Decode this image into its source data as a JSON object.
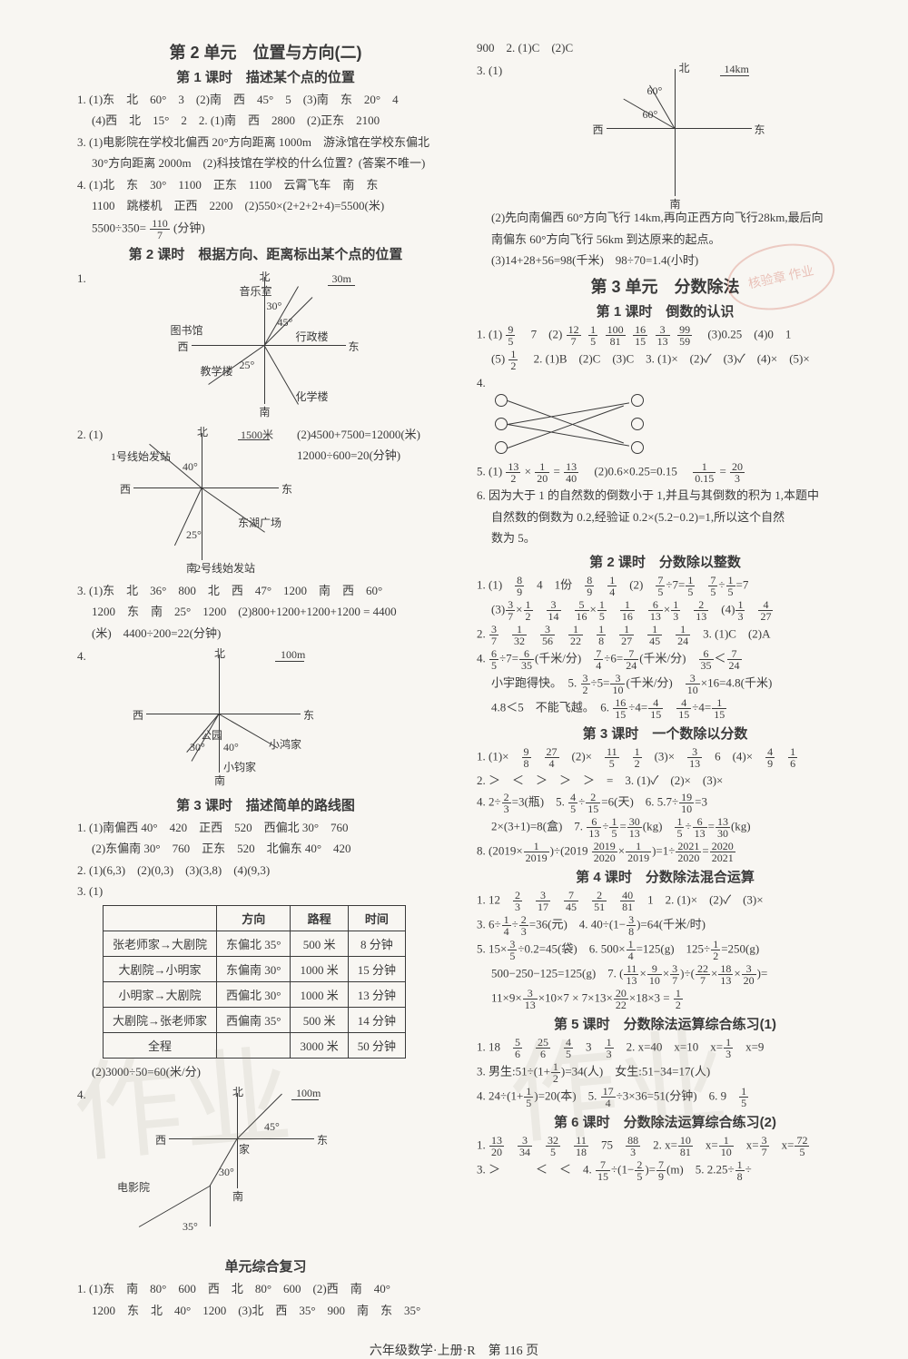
{
  "colors": {
    "text": "#3a3a3a",
    "bg": "#f8f6f2",
    "watermark": "rgba(150,140,120,0.12)",
    "stamp": "rgba(200,70,50,0.25)"
  },
  "left": {
    "unit2_title": "第 2 单元　位置与方向(二)",
    "l1_title": "第 1 课时　描述某个点的位置",
    "l1_q1": "1. (1)东　北　60°　3　(2)南　西　45°　5　(3)南　东　20°　4",
    "l1_q1b": "(4)西　北　15°　2　2. (1)南　西　2800　(2)正东　2100",
    "l1_q3": "3. (1)电影院在学校北偏西 20°方向距离 1000m　游泳馆在学校东偏北",
    "l1_q3b": "30°方向距离 2000m　(2)科技馆在学校的什么位置？(答案不唯一)",
    "l1_q4": "4. (1)北　东　30°　1100　正东　1100　云霄飞车　南　东",
    "l1_q4b": "1100　跳楼机　正西　2200　(2)550×(2+2+2+4)=5500(米)",
    "l1_q4c_pre": "5500÷350=",
    "l1_q4c_num": "110",
    "l1_q4c_den": "7",
    "l1_q4c_post": "(分钟)",
    "l2_title": "第 2 课时　根据方向、距离标出某个点的位置",
    "d1": {
      "q": "1.",
      "north": "北",
      "south": "南",
      "east": "东",
      "west": "西",
      "scale": "30m",
      "yinyue": "音乐室",
      "tushu": "图书馆",
      "xingzheng": "行政楼",
      "jiaoxue": "教学楼",
      "huaxue": "化学楼",
      "a30": "30°",
      "a45": "45°",
      "a25": "25°"
    },
    "d2": {
      "q": "2. (1)",
      "north": "北",
      "south": "南",
      "east": "东",
      "west": "西",
      "scale": "1500米",
      "s1a": "(2)4500+7500=12000(米)",
      "s1b": "12000÷600=20(分钟)",
      "line1": "1号线始发站",
      "a40": "40°",
      "donghu": "东湖广场",
      "a25": "25°",
      "line2": "2号线始发站"
    },
    "l2_q3": "3. (1)东　北　36°　800　北　西　47°　1200　南　西　60°",
    "l2_q3b": "1200　东　南　25°　1200　(2)800+1200+1200+1200 = 4400",
    "l2_q3c": "(米)　4400÷200=22(分钟)",
    "d3": {
      "q": "4.",
      "north": "北",
      "south": "南",
      "east": "东",
      "west": "西",
      "scale": "100m",
      "park": "公园",
      "hong": "小鸿家",
      "jun": "小钧家",
      "a30": "30°",
      "a40": "40°"
    },
    "l3_title": "第 3 课时　描述简单的路线图",
    "l3_q1": "1. (1)南偏西 40°　420　正西　520　西偏北 30°　760",
    "l3_q1b": "(2)东偏南 30°　760　正东　520　北偏东 40°　420",
    "l3_q2": "2. (1)(6,3)　(2)(0,3)　(3)(3,8)　(4)(9,3)",
    "l3_q3": "3. (1)",
    "table": {
      "headers": [
        "",
        "方向",
        "路程",
        "时间"
      ],
      "rows": [
        [
          "张老师家→大剧院",
          "东偏北 35°",
          "500 米",
          "8 分钟"
        ],
        [
          "大剧院→小明家",
          "东偏南 30°",
          "1000 米",
          "15 分钟"
        ],
        [
          "小明家→大剧院",
          "西偏北 30°",
          "1000 米",
          "13 分钟"
        ],
        [
          "大剧院→张老师家",
          "西偏南 35°",
          "500 米",
          "14 分钟"
        ],
        [
          "全程",
          "",
          "3000 米",
          "50 分钟"
        ]
      ]
    },
    "l3_q3b": "(2)3000÷50=60(米/分)",
    "d4": {
      "q": "4.",
      "north": "北",
      "south": "南",
      "east": "东",
      "west": "西",
      "scale": "100m",
      "jia": "家",
      "cinema": "电影院",
      "a45": "45°",
      "a30": "30°",
      "a35": "35°"
    },
    "review_title": "单元综合复习",
    "rev_q1": "1. (1)东　南　80°　600　西　北　80°　600　(2)西　南　40°",
    "rev_q1b": "1200　东　北　40°　1200　(3)北　西　35°　900　南　东　35°"
  },
  "right": {
    "top": "900　2. (1)C　(2)C",
    "q3": "3. (1)",
    "d5": {
      "north": "北",
      "south": "南",
      "east": "东",
      "west": "西",
      "scale": "14km",
      "a60a": "60°",
      "a60b": "60°"
    },
    "q3_2": "(2)先向南偏西 60°方向飞行 14km,再向正西方向飞行28km,最后向",
    "q3_2b": "南偏东 60°方向飞行 56km 到达原来的起点。",
    "q3_3": "(3)14+28+56=98(千米)　98÷70=1.4(小时)",
    "unit3_title": "第 3 单元　分数除法",
    "u3l1_title": "第 1 课时　倒数的认识",
    "u3l1_q1_pre": "1. (1)",
    "u3l1_q1_f1n": "9",
    "u3l1_q1_f1d": "5",
    "u3l1_q1_a": "　7　(2)",
    "u3l1_q1_f2n": "12",
    "u3l1_q1_f2d": "7",
    "u3l1_q1_f3n": "1",
    "u3l1_q1_f3d": "5",
    "u3l1_q1_f4n": "100",
    "u3l1_q1_f4d": "81",
    "u3l1_q1_f5n": "16",
    "u3l1_q1_f5d": "15",
    "u3l1_q1_f6n": "3",
    "u3l1_q1_f6d": "13",
    "u3l1_q1_f7n": "99",
    "u3l1_q1_f7d": "59",
    "u3l1_q1_b": "　(3)0.25　(4)0　1",
    "u3l1_q1c_pre": "(5)",
    "u3l1_q1_f8n": "1",
    "u3l1_q1_f8d": "2",
    "u3l1_q1c": "　2. (1)B　(2)C　(3)C　3. (1)×　(2)✓　(3)✓　(4)×　(5)×",
    "u3l1_q4": "4.",
    "u3l1_q5_pre": "5. (1)",
    "u3l1_q5_f1n": "13",
    "u3l1_q5_f1d": "2",
    "u3l1_q5_a": "×",
    "u3l1_q5_f2n": "1",
    "u3l1_q5_f2d": "20",
    "u3l1_q5_b": "=",
    "u3l1_q5_f3n": "13",
    "u3l1_q5_f3d": "40",
    "u3l1_q5_c": "　(2)0.6×0.25=0.15　",
    "u3l1_q5_f4n": "1",
    "u3l1_q5_f4d": "0.15",
    "u3l1_q5_d": "=",
    "u3l1_q5_f5n": "20",
    "u3l1_q5_f5d": "3",
    "u3l1_q6": "6. 因为大于 1 的自然数的倒数小于 1,并且与其倒数的积为 1,本题中",
    "u3l1_q6b": "自然数的倒数为 0.2,经验证 0.2×(5.2−0.2)=1,所以这个自然",
    "u3l1_q6c": "数为 5。",
    "u3l2_title": "第 2 课时　分数除以整数",
    "u3l2_l1": "1. (1)　8/9　4　1份　8/9　1/4　(2)　7/5÷7=1/5　7/5÷1/5=7",
    "u3l2_l2": "(3)3/7×1/2　3/14　5/16×1/5　1/16　6/13×1/3　2/13　(4)1/3　4/27",
    "u3l2_l3": "2. 3/7　1/32　3/56　1/22　1/8　1/27　1/45　1/24　3. (1)C　(2)A",
    "u3l2_l4": "4. 6/5÷7=6/35(千米/分)　7/4÷6=7/24(千米/分)　6/35＜7/24",
    "u3l2_l5": "小宇跑得快。　5. 3/2÷5=3/10(千米/分)　3/10×16=4.8(千米)",
    "u3l2_l6": "4.8＜5　不能飞越。　6. 16/15÷4=4/15　4/15÷4=1/15",
    "u3l3_title": "第 3 课时　一个数除以分数",
    "u3l3_l1": "1. (1)×　9/8　27/4　(2)×　11/5　1/2　(3)×　3/13　6　(4)×　4/9　1/6",
    "u3l3_l2": "2. ＞　＜　＞　＞　＞　=　3. (1)✓　(2)×　(3)×",
    "u3l3_l3": "4. 2÷2/3=3(瓶)　5. 4/5÷2/15=6(天)　6. 5.7÷19/10=3",
    "u3l3_l4": "2×(3+1)=8(盒)　7. 6/13÷1/5=30/13(kg)　1/5÷6/13=13/30(kg)",
    "u3l3_l5": "8. (2019×1/2019)÷(2019 2019/2020×1/2019)=1÷2021/2020=2020/2021",
    "u3l4_title": "第 4 课时　分数除法混合运算",
    "u3l4_l1": "1. 12　2/3　3/17　7/45　2/51　40/81　1　2. (1)×　(2)✓　(3)×",
    "u3l4_l2": "3. 6÷1/4÷2/3=36(元)　4. 40÷(1−3/8)=64(千米/时)",
    "u3l4_l3": "5. 15×3/5÷0.2=45(袋)　6. 500×1/4=125(g)　125÷1/2=250(g)",
    "u3l4_l4": "500−250−125=125(g)　7. (11/13×9/10×3/7)÷(22/7×18/13×3/20)=",
    "u3l4_l5": "11×9×3/13×10×7 × 7×13×20/22×18×3 = 1/2",
    "u3l5_title": "第 5 课时　分数除法运算综合练习(1)",
    "u3l5_l1": "1. 18　5/6　25/6　4/5　3　1/3　2. x=40　x=10　x=1/3　x=9",
    "u3l5_l2": "3. 男生:51÷(1+1/2)=34(人)　女生:51−34=17(人)",
    "u3l5_l3": "4. 24÷(1+1/5)=20(本)　5. 17/4÷3×36=51(分钟)　6. 9　1/5",
    "u3l6_title": "第 6 课时　分数除法运算综合练习(2)",
    "u3l6_l1": "1. 13/20　3/34　32/5　11/18　75　88/3　2. x=10/81　x=1/10　x=3/7　x=72/5",
    "u3l6_l2": "3. ＞　　　＜　＜　4. 7/15÷(1−2/5)=7/9(m)　5. 2.25÷1/8÷"
  },
  "footer": "六年级数学·上册·R　第 116 页",
  "wm_text": "作业",
  "stamp_text": "核验章 作业"
}
